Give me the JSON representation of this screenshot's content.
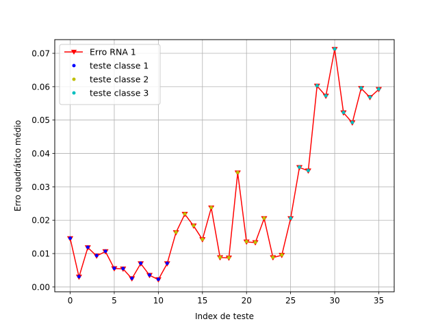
{
  "chart_data": {
    "type": "line",
    "xlabel": "Index de teste",
    "ylabel": "Erro quadrático médio",
    "xlim": [
      -1.75,
      36.75
    ],
    "ylim": [
      -0.00145,
      0.0741
    ],
    "xticks": [
      0,
      5,
      10,
      15,
      20,
      25,
      30,
      35
    ],
    "xtick_labels": [
      "0",
      "5",
      "10",
      "15",
      "20",
      "25",
      "30",
      "35"
    ],
    "yticks": [
      0.0,
      0.01,
      0.02,
      0.03,
      0.04,
      0.05,
      0.06,
      0.07
    ],
    "ytick_labels": [
      "0.00",
      "0.01",
      "0.02",
      "0.03",
      "0.04",
      "0.05",
      "0.06",
      "0.07"
    ],
    "grid": true,
    "legend_position": "upper-left",
    "series": [
      {
        "name": "Erro RNA 1",
        "style": "line-with-triangle-down-markers",
        "color": "#ff0000",
        "x": [
          0,
          1,
          2,
          3,
          4,
          5,
          6,
          7,
          8,
          9,
          10,
          11,
          12,
          13,
          14,
          15,
          16,
          17,
          18,
          19,
          20,
          21,
          22,
          23,
          24,
          25,
          26,
          27,
          28,
          29,
          30,
          31,
          32,
          33,
          34,
          35
        ],
        "y": [
          0.0145,
          0.003,
          0.0118,
          0.0093,
          0.0106,
          0.0055,
          0.0054,
          0.0025,
          0.007,
          0.0035,
          0.0022,
          0.007,
          0.0163,
          0.0218,
          0.0183,
          0.0142,
          0.0237,
          0.0088,
          0.0087,
          0.0342,
          0.0135,
          0.0133,
          0.0205,
          0.0088,
          0.0095,
          0.0205,
          0.0358,
          0.0348,
          0.0602,
          0.0572,
          0.0712,
          0.0522,
          0.0492,
          0.0595,
          0.0568,
          0.0592
        ]
      },
      {
        "name": "teste classe 1",
        "style": "points",
        "color": "#0000ff",
        "x": [
          0,
          1,
          2,
          3,
          4,
          5,
          6,
          7,
          8,
          9,
          10,
          11
        ],
        "y": [
          0.0145,
          0.003,
          0.0118,
          0.0093,
          0.0106,
          0.0055,
          0.0054,
          0.0025,
          0.007,
          0.0035,
          0.0022,
          0.007
        ]
      },
      {
        "name": "teste classe 2",
        "style": "points",
        "color": "#bfbf00",
        "x": [
          12,
          13,
          14,
          15,
          16,
          17,
          18,
          19,
          20,
          21,
          22,
          23,
          24
        ],
        "y": [
          0.0163,
          0.0218,
          0.0183,
          0.0142,
          0.0237,
          0.0088,
          0.0087,
          0.0342,
          0.0135,
          0.0133,
          0.0205,
          0.0088,
          0.0095
        ]
      },
      {
        "name": "teste classe 3",
        "style": "points",
        "color": "#00bfbf",
        "x": [
          25,
          26,
          27,
          28,
          29,
          30,
          31,
          32,
          33,
          34,
          35
        ],
        "y": [
          0.0205,
          0.0358,
          0.0348,
          0.0602,
          0.0572,
          0.0712,
          0.0522,
          0.0492,
          0.0595,
          0.0568,
          0.0592
        ]
      }
    ]
  }
}
